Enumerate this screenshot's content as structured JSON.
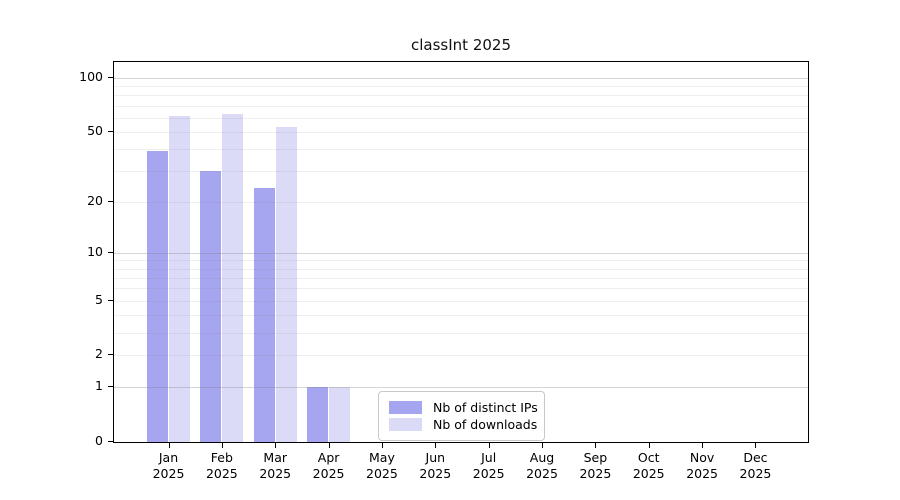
{
  "chart_data": {
    "type": "bar",
    "title": "classInt 2025",
    "categories": [
      "Jan",
      "Feb",
      "Mar",
      "Apr",
      "May",
      "Jun",
      "Jul",
      "Aug",
      "Sep",
      "Oct",
      "Nov",
      "Dec"
    ],
    "category_year": "2025",
    "series": [
      {
        "name": "Nb of distinct IPs",
        "color": "#a6a6f0",
        "values": [
          39,
          30,
          24,
          1,
          0,
          0,
          0,
          0,
          0,
          0,
          0,
          0
        ]
      },
      {
        "name": "Nb of downloads",
        "color": "#dbdbf8",
        "values": [
          61,
          63,
          53,
          1,
          0,
          0,
          0,
          0,
          0,
          0,
          0,
          0
        ]
      }
    ],
    "yticks": [
      0,
      1,
      2,
      5,
      10,
      20,
      50,
      100
    ],
    "y_scale": "log10(value+1)",
    "ylim": [
      0,
      125
    ],
    "grid": true,
    "minor_gridlines": [
      2,
      3,
      4,
      5,
      6,
      7,
      8,
      9,
      20,
      30,
      40,
      50,
      60,
      70,
      80,
      90
    ],
    "major_gridlines": [
      1,
      10,
      100
    ],
    "legend_position": "inside-bottom-center",
    "xlabel": "",
    "ylabel": ""
  }
}
